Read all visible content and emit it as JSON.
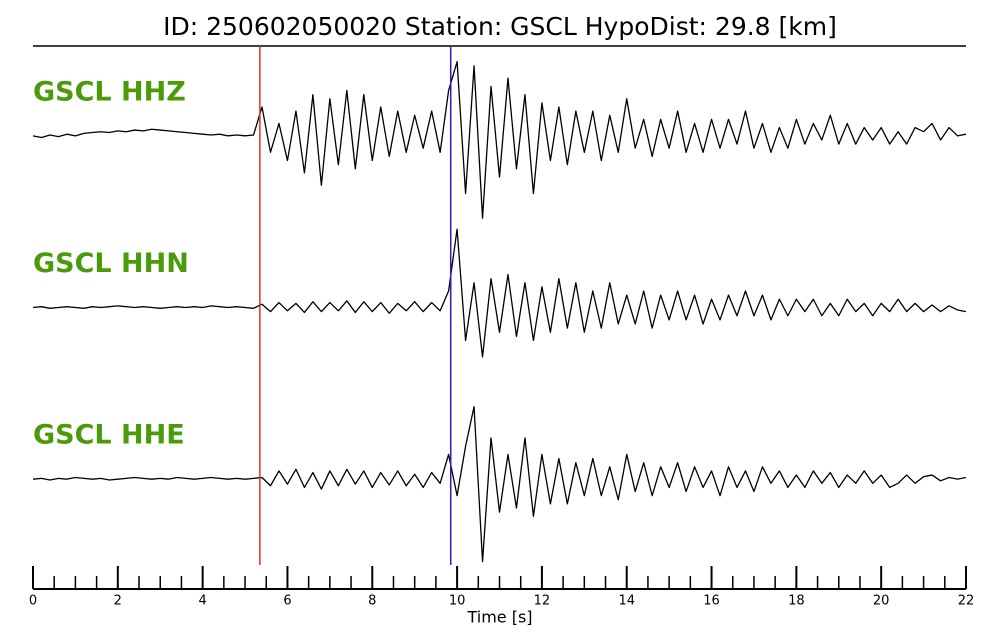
{
  "chart_data": {
    "type": "line",
    "title": "ID: 250602050020   Station: GSCL   HypoDist:    29.8 [km]",
    "xlabel": "Time [s]",
    "xlim": [
      0,
      22
    ],
    "xticks": [
      0,
      2,
      4,
      6,
      8,
      10,
      12,
      14,
      16,
      18,
      20,
      22
    ],
    "xminorticks": [
      0.5,
      1,
      1.5,
      2.5,
      3,
      3.5,
      4.5,
      5,
      5.5,
      6.5,
      7,
      7.5,
      8.5,
      9,
      9.5,
      10.5,
      11,
      11.5,
      12.5,
      13,
      13.5,
      14.5,
      15,
      15.5,
      16.5,
      17,
      17.5,
      18.5,
      19,
      19.5,
      20.5,
      21,
      21.5
    ],
    "ylim": [
      -1,
      1
    ],
    "label_color": "#4a9a0a",
    "markers": [
      {
        "x": 5.35,
        "color": "#e03030"
      },
      {
        "x": 9.85,
        "color": "#2020d0"
      }
    ],
    "x": [
      0,
      0.2,
      0.4,
      0.6,
      0.8,
      1,
      1.2,
      1.4,
      1.6,
      1.8,
      2,
      2.2,
      2.4,
      2.6,
      2.8,
      3,
      3.2,
      3.4,
      3.6,
      3.8,
      4,
      4.2,
      4.4,
      4.6,
      4.8,
      5,
      5.2,
      5.4,
      5.6,
      5.8,
      6,
      6.2,
      6.4,
      6.6,
      6.8,
      7,
      7.2,
      7.4,
      7.6,
      7.8,
      8,
      8.2,
      8.4,
      8.6,
      8.8,
      9,
      9.2,
      9.4,
      9.6,
      9.8,
      10,
      10.2,
      10.4,
      10.6,
      10.8,
      11,
      11.2,
      11.4,
      11.6,
      11.8,
      12,
      12.2,
      12.4,
      12.6,
      12.8,
      13,
      13.2,
      13.4,
      13.6,
      13.8,
      14,
      14.2,
      14.4,
      14.6,
      14.8,
      15,
      15.2,
      15.4,
      15.6,
      15.8,
      16,
      16.2,
      16.4,
      16.6,
      16.8,
      17,
      17.2,
      17.4,
      17.6,
      17.8,
      18,
      18.2,
      18.4,
      18.6,
      18.8,
      19,
      19.2,
      19.4,
      19.6,
      19.8,
      20,
      20.2,
      20.4,
      20.6,
      20.8,
      21,
      21.2,
      21.4,
      21.6,
      21.8,
      22
    ],
    "series": [
      {
        "name": "GSCL HHZ",
        "color": "#000000",
        "values": [
          0,
          -0.02,
          0.01,
          -0.01,
          0.02,
          0,
          0.03,
          0.04,
          0.05,
          0.04,
          0.06,
          0.05,
          0.07,
          0.06,
          0.08,
          0.07,
          0.06,
          0.05,
          0.04,
          0.03,
          0.02,
          0.01,
          0.02,
          0,
          0.01,
          0,
          0.01,
          0.35,
          -0.2,
          0.15,
          -0.3,
          0.3,
          -0.45,
          0.5,
          -0.6,
          0.45,
          -0.35,
          0.55,
          -0.4,
          0.5,
          -0.3,
          0.35,
          -0.25,
          0.3,
          -0.2,
          0.25,
          -0.15,
          0.3,
          -0.2,
          0.55,
          0.9,
          -0.7,
          0.85,
          -1.0,
          0.6,
          -0.5,
          0.7,
          -0.4,
          0.5,
          -0.7,
          0.4,
          -0.3,
          0.35,
          -0.35,
          0.3,
          -0.2,
          0.3,
          -0.3,
          0.25,
          -0.2,
          0.45,
          -0.15,
          0.2,
          -0.25,
          0.2,
          -0.15,
          0.3,
          -0.2,
          0.15,
          -0.2,
          0.2,
          -0.15,
          0.2,
          -0.1,
          0.3,
          -0.15,
          0.15,
          -0.2,
          0.1,
          -0.15,
          0.2,
          -0.1,
          0.15,
          -0.05,
          0.25,
          -0.1,
          0.15,
          -0.1,
          0.1,
          -0.05,
          0.1,
          -0.1,
          0.05,
          -0.1,
          0.1,
          0.05,
          0.15,
          -0.05,
          0.1,
          0,
          0.02
        ]
      },
      {
        "name": "GSCL HHN",
        "color": "#000000",
        "values": [
          0,
          0.01,
          -0.01,
          0,
          0.01,
          0,
          -0.01,
          0.01,
          0,
          0.01,
          0.02,
          0.01,
          0,
          0.01,
          0,
          -0.01,
          0,
          0.01,
          0,
          0.01,
          0,
          0.02,
          0.01,
          0,
          0.01,
          0,
          -0.01,
          0.04,
          -0.05,
          0.06,
          -0.04,
          0.05,
          -0.06,
          0.07,
          -0.05,
          0.06,
          -0.04,
          0.08,
          -0.06,
          0.07,
          -0.05,
          0.06,
          -0.07,
          0.05,
          -0.04,
          0.07,
          -0.05,
          0.06,
          -0.04,
          0.2,
          0.95,
          -0.4,
          0.3,
          -0.6,
          0.35,
          -0.3,
          0.4,
          -0.35,
          0.3,
          -0.4,
          0.25,
          -0.3,
          0.35,
          -0.25,
          0.3,
          -0.3,
          0.2,
          -0.25,
          0.3,
          -0.2,
          0.15,
          -0.2,
          0.2,
          -0.25,
          0.15,
          -0.15,
          0.2,
          -0.15,
          0.15,
          -0.2,
          0.1,
          -0.15,
          0.15,
          -0.1,
          0.2,
          -0.1,
          0.15,
          -0.15,
          0.1,
          -0.1,
          0.1,
          -0.05,
          0.1,
          -0.1,
          0.05,
          -0.1,
          0.1,
          -0.05,
          0.05,
          -0.1,
          0.05,
          -0.05,
          0.1,
          -0.05,
          0.05,
          -0.05,
          0.03,
          -0.05,
          0.02,
          -0.03,
          -0.05
        ]
      },
      {
        "name": "GSCL HHE",
        "color": "#000000",
        "values": [
          0,
          0.01,
          -0.01,
          0.01,
          0,
          0.02,
          0.01,
          0,
          0.01,
          -0.01,
          0,
          0.01,
          0.02,
          0.01,
          0,
          0.01,
          0,
          0.02,
          0.01,
          0,
          0.01,
          0.02,
          0.01,
          0,
          0.01,
          0,
          0.01,
          0.02,
          -0.08,
          0.1,
          -0.06,
          0.12,
          -0.1,
          0.08,
          -0.12,
          0.1,
          -0.08,
          0.12,
          -0.06,
          0.1,
          -0.1,
          0.08,
          -0.07,
          0.1,
          -0.08,
          0.06,
          -0.1,
          0.08,
          -0.05,
          0.3,
          -0.2,
          0.4,
          0.88,
          -1.0,
          0.5,
          -0.4,
          0.3,
          -0.35,
          0.5,
          -0.45,
          0.3,
          -0.3,
          0.25,
          -0.3,
          0.2,
          -0.2,
          0.25,
          -0.2,
          0.15,
          -0.25,
          0.3,
          -0.15,
          0.2,
          -0.2,
          0.15,
          -0.1,
          0.2,
          -0.15,
          0.15,
          -0.1,
          0.1,
          -0.2,
          0.15,
          -0.1,
          0.1,
          -0.15,
          0.15,
          -0.05,
          0.1,
          -0.1,
          0.05,
          -0.1,
          0.1,
          -0.05,
          0.08,
          -0.1,
          0.05,
          -0.05,
          0.1,
          -0.05,
          0.05,
          -0.1,
          -0.05,
          0.05,
          -0.05,
          0.03,
          0.05,
          -0.02,
          0.02,
          0,
          0.02
        ]
      }
    ]
  }
}
